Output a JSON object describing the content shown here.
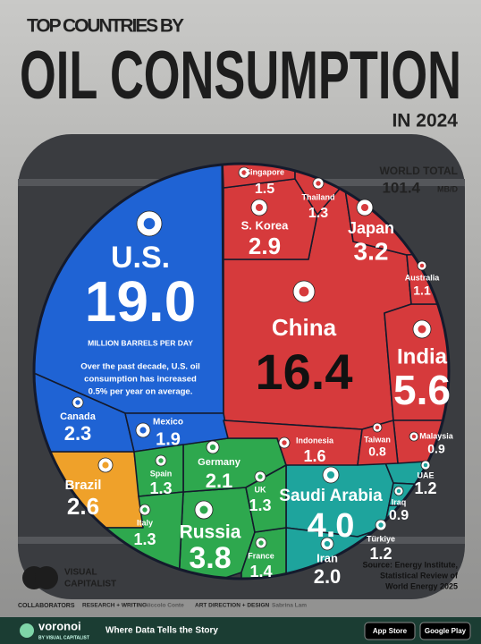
{
  "chart_data": {
    "type": "voronoi",
    "title": [
      "TOP COUNTRIES BY",
      "OIL CONSUMPTION",
      "IN 2024"
    ],
    "world_total": {
      "label": "WORLD TOTAL",
      "value": 101.4,
      "unit": "MB/D"
    },
    "unit_label": "MILLION BARRELS PER DAY",
    "note": [
      "Over the past decade, U.S. oil",
      "consumption has increased",
      "0.5% per year on average."
    ],
    "source": [
      "Source: Energy Institute,",
      "Statistical Review of",
      "World Energy 2025"
    ],
    "categories": [
      "U.S.",
      "China",
      "India",
      "Saudi Arabia",
      "Russia",
      "Japan",
      "S. Korea",
      "Brazil",
      "Canada",
      "Germany",
      "Iran",
      "Mexico",
      "Indonesia",
      "Singapore",
      "France",
      "Thailand",
      "Spain",
      "UK",
      "Italy",
      "UAE",
      "Türkiye",
      "Australia",
      "Iraq",
      "Malaysia",
      "Taiwan"
    ],
    "values": [
      19.0,
      16.4,
      5.6,
      4.0,
      3.8,
      3.2,
      2.9,
      2.6,
      2.3,
      2.1,
      2.0,
      1.9,
      1.6,
      1.5,
      1.4,
      1.3,
      1.3,
      1.3,
      1.3,
      1.2,
      1.2,
      1.1,
      0.9,
      0.9,
      0.8
    ],
    "value_labels": [
      "19.0",
      "16.4",
      "5.6",
      "4.0",
      "3.8",
      "3.2",
      "2.9",
      "2.6",
      "2.3",
      "2.1",
      "2.0",
      "1.9",
      "1.6",
      "1.5",
      "1.4",
      "1.3",
      "1.3",
      "1.3",
      "1.3",
      "1.2",
      "1.2",
      "1.1",
      "0.9",
      "0.9",
      "0.8"
    ],
    "colors": [
      "#1f63d4",
      "#d63a3c",
      "#d63a3c",
      "#1ea49d",
      "#2ea84e",
      "#d63a3c",
      "#d63a3c",
      "#efa12a",
      "#1f63d4",
      "#2ea84e",
      "#1ea49d",
      "#1f63d4",
      "#d63a3c",
      "#d63a3c",
      "#2ea84e",
      "#d63a3c",
      "#2ea84e",
      "#2ea84e",
      "#2ea84e",
      "#1ea49d",
      "#1ea49d",
      "#d63a3c",
      "#1ea49d",
      "#d63a3c",
      "#d63a3c"
    ]
  },
  "footer": {
    "brand": "VISUAL",
    "brand2": "CAPITALIST",
    "collaborators": "COLLABORATORS",
    "research": "RESEARCH + WRITING",
    "research_name": "Niccolo Conte",
    "design": "ART DIRECTION + DESIGN",
    "design_name": "Sabrina Lam",
    "voronoi": "voronoi",
    "voronoi_by": "BY VISUAL CAPITALIST",
    "tagline": "Where Data Tells the Story",
    "app_store": "App Store",
    "google_play": "Google Play"
  }
}
